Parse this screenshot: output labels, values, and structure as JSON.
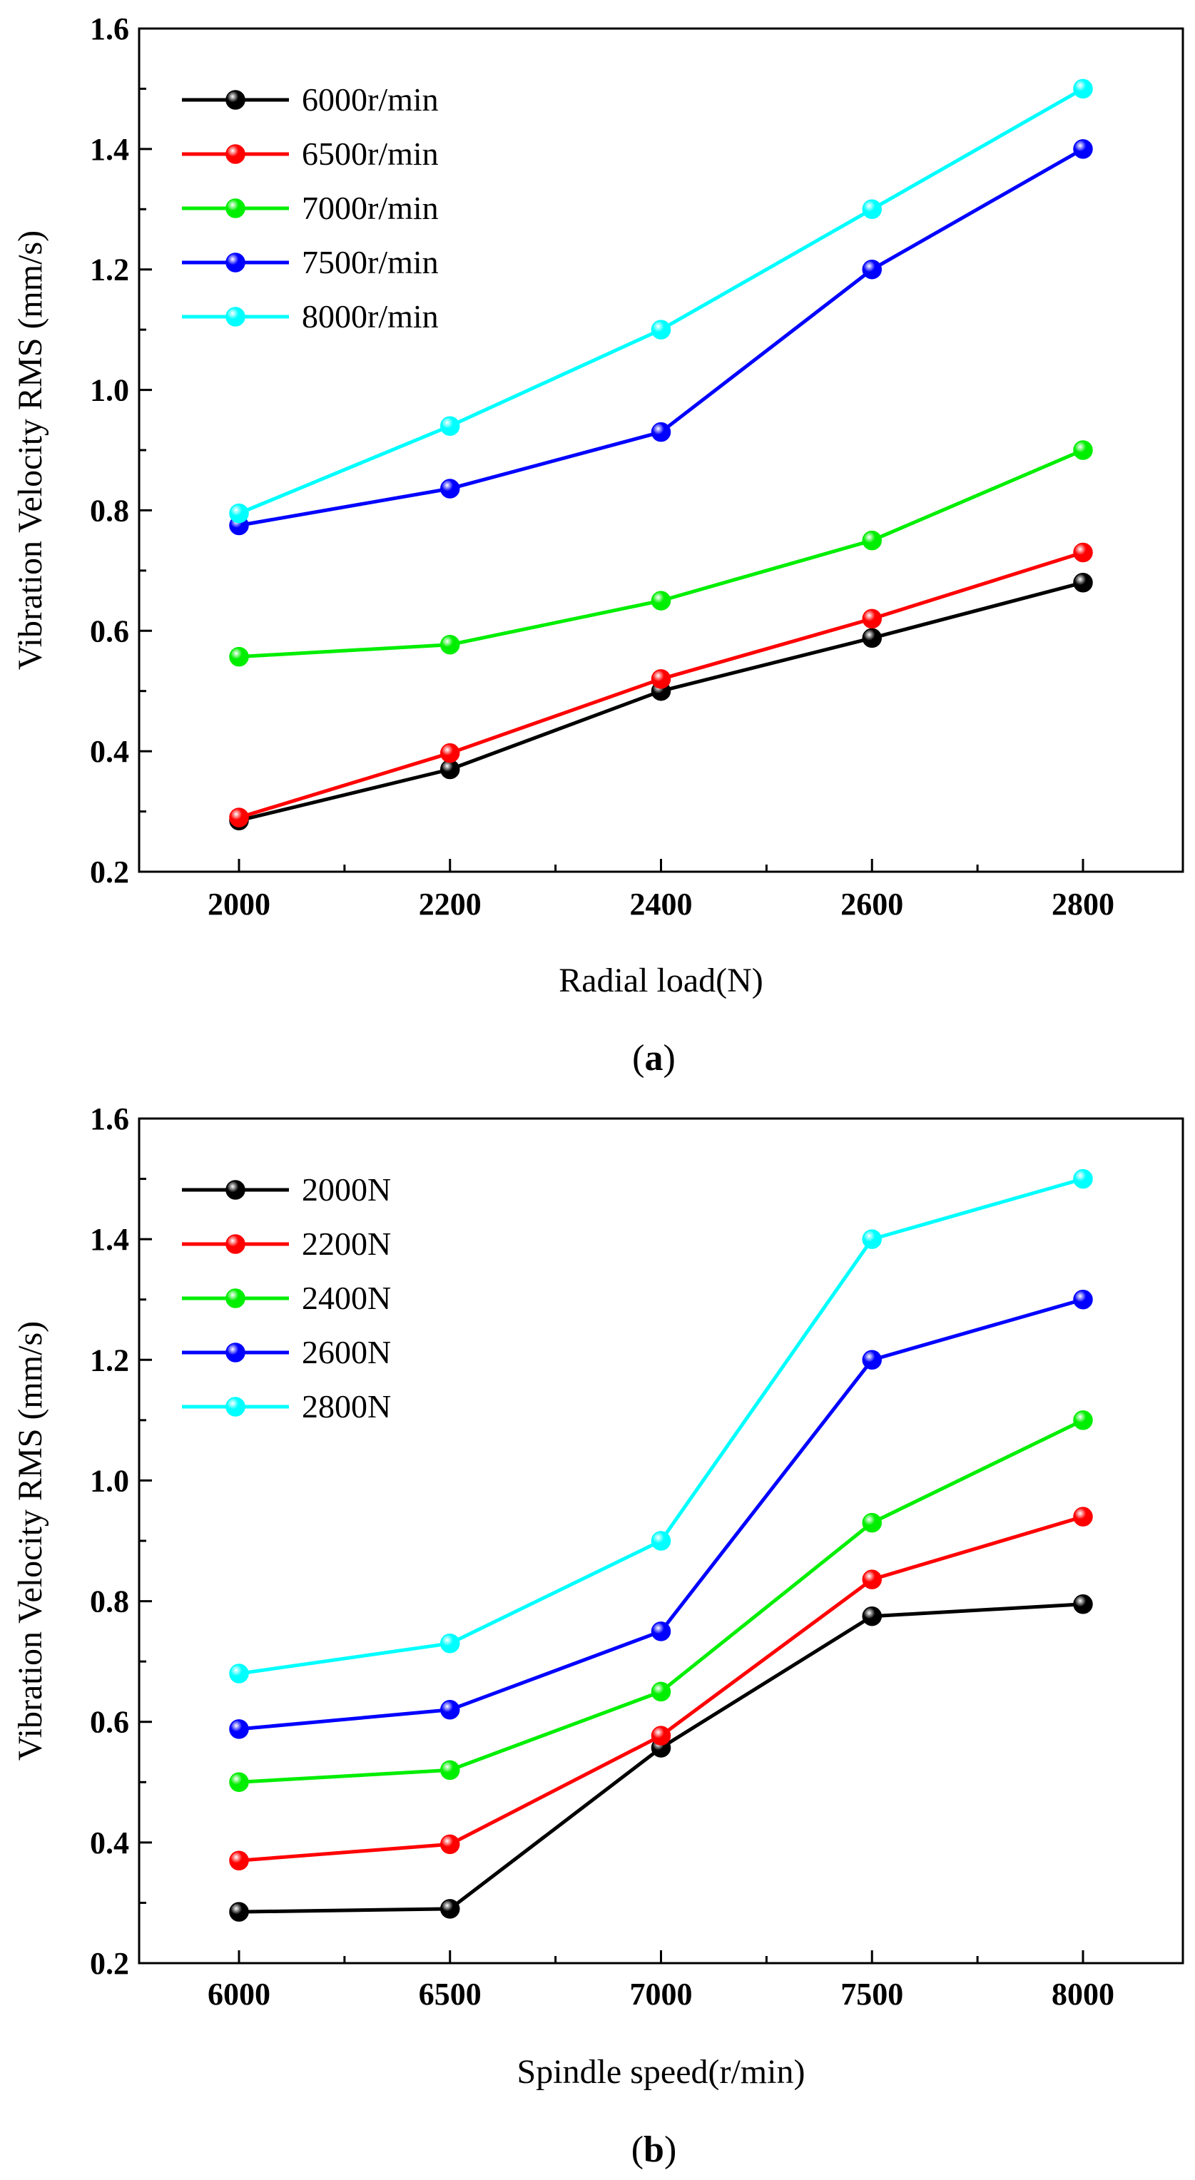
{
  "chart_data": [
    {
      "type": "line",
      "panel_label": "a",
      "xlabel": "Radial load(N)",
      "ylabel": "Vibration Velocity RMS (mm/s)",
      "x": [
        2000,
        2200,
        2400,
        2600,
        2800
      ],
      "x_ticks": [
        "2000",
        "2200",
        "2400",
        "2600",
        "2800"
      ],
      "ylim": [
        0.2,
        1.6
      ],
      "y_ticks": [
        "0.2",
        "0.4",
        "0.6",
        "0.8",
        "1.0",
        "1.2",
        "1.4",
        "1.6"
      ],
      "grid": false,
      "legend_position": "top-left",
      "series": [
        {
          "name": "6000r/min",
          "color": "#000000",
          "values": [
            0.285,
            0.37,
            0.5,
            0.588,
            0.68
          ]
        },
        {
          "name": "6500r/min",
          "color": "#ff0000",
          "values": [
            0.29,
            0.397,
            0.52,
            0.62,
            0.73
          ]
        },
        {
          "name": "7000r/min",
          "color": "#00ee00",
          "values": [
            0.557,
            0.577,
            0.65,
            0.75,
            0.9
          ]
        },
        {
          "name": "7500r/min",
          "color": "#0000ff",
          "values": [
            0.775,
            0.836,
            0.93,
            1.2,
            1.4
          ]
        },
        {
          "name": "8000r/min",
          "color": "#00ffff",
          "values": [
            0.795,
            0.94,
            1.1,
            1.3,
            1.5
          ]
        }
      ]
    },
    {
      "type": "line",
      "panel_label": "b",
      "xlabel": "Spindle speed(r/min)",
      "ylabel": "Vibration Velocity RMS (mm/s)",
      "x": [
        6000,
        6500,
        7000,
        7500,
        8000
      ],
      "x_ticks": [
        "6000",
        "6500",
        "7000",
        "7500",
        "8000"
      ],
      "ylim": [
        0.2,
        1.6
      ],
      "y_ticks": [
        "0.2",
        "0.4",
        "0.6",
        "0.8",
        "1.0",
        "1.2",
        "1.4",
        "1.6"
      ],
      "grid": false,
      "legend_position": "top-left",
      "series": [
        {
          "name": "2000N",
          "color": "#000000",
          "values": [
            0.285,
            0.29,
            0.557,
            0.775,
            0.795
          ]
        },
        {
          "name": "2200N",
          "color": "#ff0000",
          "values": [
            0.37,
            0.397,
            0.577,
            0.836,
            0.94
          ]
        },
        {
          "name": "2400N",
          "color": "#00ee00",
          "values": [
            0.5,
            0.52,
            0.65,
            0.93,
            1.1
          ]
        },
        {
          "name": "2600N",
          "color": "#0000ff",
          "values": [
            0.588,
            0.62,
            0.75,
            1.2,
            1.3
          ]
        },
        {
          "name": "2800N",
          "color": "#00ffff",
          "values": [
            0.68,
            0.73,
            0.9,
            1.4,
            1.5
          ]
        }
      ]
    }
  ]
}
